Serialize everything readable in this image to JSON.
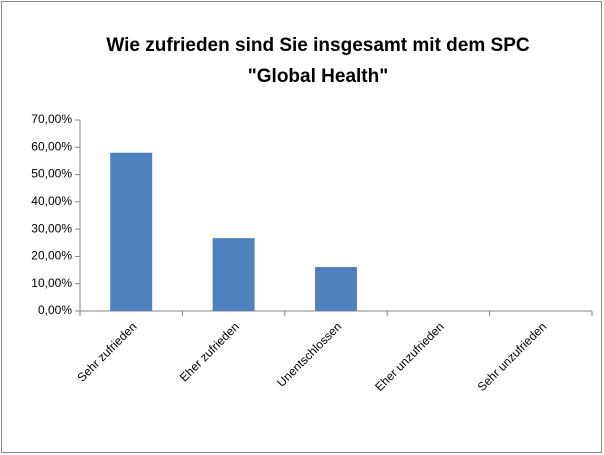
{
  "chart_data": {
    "type": "bar",
    "title": [
      "Wie zufrieden sind Sie insgesamt mit dem SPC",
      "\"Global Health\""
    ],
    "categories": [
      "Sehr zufrieden",
      "Eher zufrieden",
      "Unentschlossen",
      "Eher unzufrieden",
      "Sehr unzufrieden"
    ],
    "values": [
      58,
      26.7,
      16.1,
      0,
      0
    ],
    "color": "#4f81bd",
    "ylim": [
      0,
      70
    ],
    "yticks": [
      {
        "value": 0,
        "label": "0,00%"
      },
      {
        "value": 10,
        "label": "10,00%"
      },
      {
        "value": 20,
        "label": "20,00%"
      },
      {
        "value": 30,
        "label": "30,00%"
      },
      {
        "value": 40,
        "label": "40,00%"
      },
      {
        "value": 50,
        "label": "50,00%"
      },
      {
        "value": 60,
        "label": "60,00%"
      },
      {
        "value": 70,
        "label": "70,00%"
      }
    ],
    "grid": false
  }
}
